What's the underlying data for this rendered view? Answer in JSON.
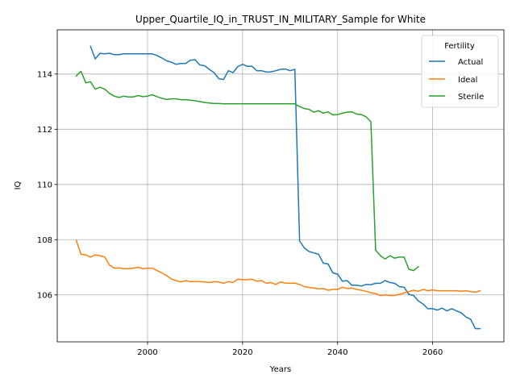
{
  "chart_data": {
    "type": "line",
    "title": "Upper_Quartile_IQ_in_TRUST_IN_MILITARY_Sample for White",
    "xlabel": "Years",
    "ylabel": "IQ",
    "xlim": [
      1981,
      2075
    ],
    "ylim": [
      104.3,
      115.6
    ],
    "xticks": [
      2000,
      2020,
      2040,
      2060
    ],
    "yticks": [
      106,
      108,
      110,
      112,
      114
    ],
    "grid": true,
    "legend": {
      "title": "Fertility",
      "placement": "top-right"
    },
    "series": [
      {
        "name": "Actual",
        "color": "#1f77b4",
        "x": [
          1988,
          1989,
          1990,
          1991,
          1992,
          1993,
          1994,
          1995,
          1996,
          1997,
          1998,
          1999,
          2000,
          2001,
          2002,
          2003,
          2004,
          2005,
          2006,
          2007,
          2008,
          2009,
          2010,
          2011,
          2012,
          2013,
          2014,
          2015,
          2016,
          2017,
          2018,
          2019,
          2020,
          2021,
          2022,
          2023,
          2024,
          2025,
          2026,
          2027,
          2028,
          2029,
          2030,
          2031,
          2032,
          2033,
          2034,
          2035,
          2036,
          2037,
          2038,
          2039,
          2040,
          2041,
          2042,
          2043,
          2044,
          2045,
          2046,
          2047,
          2048,
          2049,
          2050,
          2051,
          2052,
          2053,
          2054,
          2055,
          2056,
          2057,
          2058,
          2059,
          2060,
          2061,
          2062,
          2063,
          2064,
          2065,
          2066,
          2067,
          2068,
          2069,
          2070
        ],
        "y": [
          115.0,
          114.55,
          114.75,
          114.73,
          114.75,
          114.7,
          114.7,
          114.73,
          114.73,
          114.73,
          114.73,
          114.73,
          114.73,
          114.73,
          114.67,
          114.58,
          114.48,
          114.43,
          114.35,
          114.38,
          114.38,
          114.5,
          114.52,
          114.33,
          114.3,
          114.17,
          114.05,
          113.83,
          113.8,
          114.12,
          114.05,
          114.27,
          114.35,
          114.28,
          114.28,
          114.12,
          114.12,
          114.07,
          114.08,
          114.12,
          114.17,
          114.18,
          114.12,
          114.17,
          107.95,
          107.7,
          107.57,
          107.52,
          107.47,
          107.15,
          107.12,
          106.8,
          106.75,
          106.5,
          106.52,
          106.35,
          106.35,
          106.32,
          106.38,
          106.37,
          106.42,
          106.42,
          106.52,
          106.45,
          106.42,
          106.3,
          106.28,
          106.02,
          105.98,
          105.78,
          105.67,
          105.5,
          105.5,
          105.45,
          105.52,
          105.42,
          105.5,
          105.42,
          105.35,
          105.2,
          105.12,
          104.78,
          104.78
        ]
      },
      {
        "name": "Ideal",
        "color": "#ff7f0e",
        "x": [
          1985,
          1986,
          1987,
          1988,
          1989,
          1990,
          1991,
          1992,
          1993,
          1994,
          1995,
          1996,
          1997,
          1998,
          1999,
          2000,
          2001,
          2002,
          2003,
          2004,
          2005,
          2006,
          2007,
          2008,
          2009,
          2010,
          2011,
          2012,
          2013,
          2014,
          2015,
          2016,
          2017,
          2018,
          2019,
          2020,
          2021,
          2022,
          2023,
          2024,
          2025,
          2026,
          2027,
          2028,
          2029,
          2030,
          2031,
          2032,
          2033,
          2034,
          2035,
          2036,
          2037,
          2038,
          2039,
          2040,
          2041,
          2042,
          2043,
          2044,
          2045,
          2046,
          2047,
          2048,
          2049,
          2050,
          2051,
          2052,
          2053,
          2054,
          2055,
          2056,
          2057,
          2058,
          2059,
          2060,
          2061,
          2062,
          2063,
          2064,
          2065,
          2066,
          2067,
          2068,
          2069,
          2070
        ],
        "y": [
          107.97,
          107.47,
          107.45,
          107.37,
          107.45,
          107.42,
          107.37,
          107.08,
          106.97,
          106.98,
          106.95,
          106.95,
          106.97,
          107.0,
          106.95,
          106.97,
          106.97,
          106.88,
          106.8,
          106.7,
          106.58,
          106.52,
          106.47,
          106.52,
          106.48,
          106.48,
          106.48,
          106.47,
          106.45,
          106.48,
          106.47,
          106.42,
          106.48,
          106.45,
          106.57,
          106.55,
          106.55,
          106.57,
          106.5,
          106.52,
          106.42,
          106.45,
          106.38,
          106.47,
          106.43,
          106.42,
          106.43,
          106.38,
          106.3,
          106.27,
          106.25,
          106.22,
          106.23,
          106.17,
          106.2,
          106.2,
          106.28,
          106.23,
          106.25,
          106.2,
          106.17,
          106.13,
          106.08,
          106.05,
          105.98,
          106.0,
          105.98,
          105.98,
          106.02,
          106.07,
          106.12,
          106.17,
          106.13,
          106.2,
          106.15,
          106.18,
          106.15,
          106.15,
          106.15,
          106.15,
          106.15,
          106.13,
          106.15,
          106.12,
          106.1,
          106.15
        ]
      },
      {
        "name": "Sterile",
        "color": "#2ca02c",
        "x": [
          1985,
          1986,
          1987,
          1988,
          1989,
          1990,
          1991,
          1992,
          1993,
          1994,
          1995,
          1996,
          1997,
          1998,
          1999,
          2000,
          2001,
          2002,
          2003,
          2004,
          2005,
          2006,
          2007,
          2008,
          2009,
          2010,
          2011,
          2012,
          2013,
          2014,
          2015,
          2016,
          2017,
          2018,
          2019,
          2020,
          2021,
          2022,
          2023,
          2024,
          2025,
          2026,
          2027,
          2028,
          2029,
          2030,
          2031,
          2032,
          2033,
          2034,
          2035,
          2036,
          2037,
          2038,
          2039,
          2040,
          2041,
          2042,
          2043,
          2044,
          2045,
          2046,
          2047,
          2048,
          2049,
          2050,
          2051,
          2052,
          2053,
          2054,
          2055,
          2056,
          2057
        ],
        "y": [
          113.93,
          114.1,
          113.68,
          113.72,
          113.45,
          113.52,
          113.45,
          113.3,
          113.2,
          113.15,
          113.2,
          113.17,
          113.17,
          113.22,
          113.18,
          113.2,
          113.25,
          113.18,
          113.12,
          113.08,
          113.1,
          113.1,
          113.07,
          113.07,
          113.05,
          113.03,
          113.0,
          112.97,
          112.95,
          112.93,
          112.93,
          112.92,
          112.92,
          112.92,
          112.92,
          112.92,
          112.92,
          112.92,
          112.92,
          112.92,
          112.92,
          112.92,
          112.92,
          112.92,
          112.92,
          112.92,
          112.92,
          112.82,
          112.75,
          112.72,
          112.62,
          112.67,
          112.58,
          112.63,
          112.52,
          112.53,
          112.58,
          112.62,
          112.63,
          112.55,
          112.53,
          112.45,
          112.27,
          107.62,
          107.42,
          107.3,
          107.42,
          107.33,
          107.37,
          107.37,
          106.93,
          106.88,
          107.02
        ]
      }
    ]
  }
}
